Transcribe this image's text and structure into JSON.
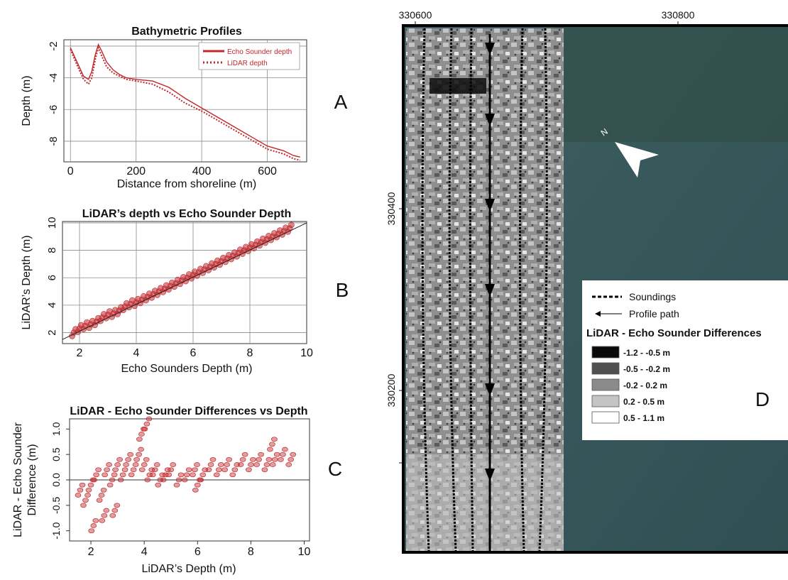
{
  "panel_letters": {
    "a": "A",
    "b": "B",
    "c": "C",
    "d": "D"
  },
  "colors": {
    "series_red": "#c0282d",
    "axis": "#333333",
    "grid": "#8c8c8c"
  },
  "chart_data": [
    {
      "id": "A",
      "type": "line",
      "title": "Bathymetric Profiles",
      "xlabel": "Distance from shoreline (m)",
      "ylabel": "Depth (m)",
      "xlim": [
        -20,
        720
      ],
      "ylim": [
        -9.3,
        -1.6
      ],
      "xticks": [
        0,
        200,
        400,
        600
      ],
      "yticks": [
        -2,
        -4,
        -6,
        -8
      ],
      "ytick_labels": [
        "-2",
        "-4",
        "-6",
        "-8"
      ],
      "grid": true,
      "legend_position": "top-right",
      "series": [
        {
          "name": "Echo Sounder depth",
          "style": "solid",
          "x": [
            0,
            20,
            40,
            55,
            65,
            75,
            85,
            95,
            110,
            130,
            150,
            170,
            200,
            250,
            300,
            350,
            400,
            450,
            500,
            550,
            600,
            650,
            680,
            700
          ],
          "y": [
            -2.1,
            -3.0,
            -3.9,
            -4.1,
            -3.6,
            -2.6,
            -1.9,
            -2.3,
            -3.0,
            -3.5,
            -3.8,
            -4.0,
            -4.1,
            -4.2,
            -4.6,
            -5.3,
            -5.9,
            -6.5,
            -7.1,
            -7.7,
            -8.3,
            -8.6,
            -8.9,
            -9.0
          ]
        },
        {
          "name": "LiDAR depth",
          "style": "dotted",
          "x": [
            0,
            20,
            40,
            55,
            65,
            75,
            85,
            95,
            110,
            130,
            150,
            170,
            200,
            250,
            300,
            350,
            400,
            450,
            500,
            550,
            600,
            650,
            680,
            700
          ],
          "y": [
            -2.2,
            -3.2,
            -4.1,
            -4.4,
            -4.0,
            -2.9,
            -2.1,
            -2.6,
            -3.3,
            -3.7,
            -3.9,
            -4.1,
            -4.2,
            -4.4,
            -4.9,
            -5.6,
            -6.1,
            -6.7,
            -7.3,
            -7.9,
            -8.5,
            -8.8,
            -9.1,
            -9.2
          ]
        }
      ]
    },
    {
      "id": "B",
      "type": "scatter",
      "title": "LiDAR’s depth vs Echo Sounder Depth",
      "xlabel": "Echo Sounders Depth (m)",
      "ylabel": "LiDAR’s Depth (m)",
      "xlim": [
        1.4,
        10
      ],
      "ylim": [
        1.2,
        10.1
      ],
      "xticks": [
        2,
        4,
        6,
        8,
        10
      ],
      "yticks": [
        2,
        4,
        6,
        8,
        10
      ],
      "grid": true,
      "x": [
        1.8,
        2.0,
        2.2,
        2.4,
        2.6,
        2.8,
        3.0,
        3.2,
        3.4,
        3.6,
        3.8,
        4.0,
        4.2,
        4.4,
        4.6,
        4.8,
        5.0,
        5.2,
        5.4,
        5.6,
        5.8,
        6.0,
        6.2,
        6.4,
        6.6,
        6.8,
        7.0,
        7.2,
        7.4,
        7.6,
        7.8,
        8.0,
        8.2,
        8.4,
        8.6,
        8.8,
        9.0,
        9.2,
        9.4
      ],
      "y": [
        2.0,
        2.3,
        2.5,
        2.6,
        2.8,
        3.1,
        3.3,
        3.4,
        3.6,
        3.9,
        4.1,
        4.2,
        4.4,
        4.6,
        4.8,
        5.0,
        5.2,
        5.4,
        5.6,
        5.8,
        6.0,
        6.2,
        6.4,
        6.6,
        6.8,
        7.0,
        7.2,
        7.4,
        7.6,
        7.8,
        8.0,
        8.2,
        8.4,
        8.6,
        8.8,
        9.0,
        9.2,
        9.4,
        9.6
      ],
      "fit_line": {
        "x": [
          1.4,
          10
        ],
        "y": [
          1.5,
          10.0
        ]
      }
    },
    {
      "id": "C",
      "type": "scatter",
      "title": "LiDAR - Echo Sounder Differences vs Depth",
      "xlabel": "LiDAR’s Depth (m)",
      "ylabel": "LiDAR - Echo Sounder Difference (m)",
      "ylabel_lines": [
        "LiDAR - Echo Sounder",
        "Difference (m)"
      ],
      "xlim": [
        1.2,
        10.2
      ],
      "ylim": [
        -1.2,
        1.2
      ],
      "xticks": [
        2,
        4,
        6,
        8,
        10
      ],
      "yticks": [
        -1.0,
        -0.5,
        0.0,
        0.5,
        1.0
      ],
      "ytick_labels": [
        "-1.0",
        "-0.5",
        "0.0",
        "0.5",
        "1.0"
      ],
      "grid": false,
      "zero_line": 0,
      "x": [
        1.6,
        1.8,
        2.0,
        2.2,
        2.4,
        2.6,
        2.8,
        3.0,
        3.2,
        3.4,
        3.6,
        3.8,
        4.0,
        4.2,
        4.4,
        4.6,
        4.8,
        5.0,
        5.3,
        5.6,
        5.9,
        6.2,
        6.5,
        6.8,
        7.1,
        7.4,
        7.7,
        8.0,
        8.3,
        8.6,
        8.9,
        9.2,
        9.5,
        2.1,
        2.9,
        3.9,
        4.1,
        2.5,
        6.0,
        8.8
      ],
      "y": [
        -0.2,
        -0.4,
        -0.1,
        0.1,
        -0.3,
        0.2,
        0.0,
        0.3,
        0.1,
        0.4,
        0.2,
        0.5,
        0.3,
        0.1,
        0.2,
        0.0,
        0.1,
        0.2,
        0.0,
        0.1,
        0.2,
        0.1,
        0.3,
        0.2,
        0.3,
        0.2,
        0.4,
        0.3,
        0.4,
        0.3,
        0.4,
        0.5,
        0.4,
        -0.9,
        -0.6,
        0.9,
        1.1,
        -0.7,
        -0.1,
        0.7
      ]
    },
    {
      "id": "D",
      "type": "map",
      "x_ticks": [
        330600,
        330800
      ],
      "y_ticks": [
        330400,
        330200
      ],
      "legend": {
        "soundings": "Soundings",
        "profile_path": "Profile path",
        "title": "LiDAR - Echo Sounder Differences",
        "classes": [
          {
            "label": "-1.2 - -0.5 m",
            "color": "#0a0a0a"
          },
          {
            "label": "-0.5 - -0.2 m",
            "color": "#505050"
          },
          {
            "label": "-0.2 - 0.2 m",
            "color": "#8a8a8a"
          },
          {
            "label": "0.2 - 0.5 m",
            "color": "#c4c4c4"
          },
          {
            "label": "0.5 - 1.1 m",
            "color": "#ffffff"
          }
        ]
      },
      "north_label": "N"
    }
  ]
}
